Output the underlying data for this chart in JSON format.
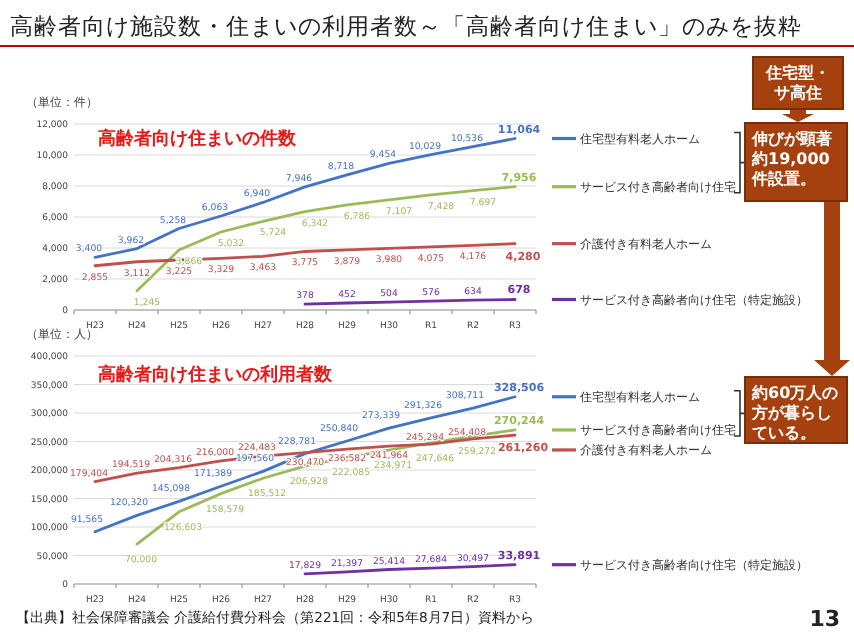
{
  "chart_data": [
    {
      "type": "line",
      "title": "高齢者向け施設数・住まいの利用者数～「高齢者向け住まい」のみを抜粋",
      "subtitle": "高齢者向け住まいの件数",
      "ylabel": "（単位：件）",
      "categories": [
        "H23",
        "H24",
        "H25",
        "H26",
        "H27",
        "H28",
        "H29",
        "H30",
        "R1",
        "R2",
        "R3"
      ],
      "series": [
        {
          "name": "住宅型有料老人ホーム",
          "color": "#4472c4",
          "values": [
            3400,
            3962,
            5258,
            6063,
            6940,
            7946,
            8718,
            9454,
            10029,
            10536,
            11064
          ],
          "value_labels": [
            "3,400",
            "3,962",
            "5,258",
            "6,063",
            "6,940",
            "7,946",
            "8,718",
            "9,454",
            "10,029",
            "10,536",
            "11,064"
          ]
        },
        {
          "name": "サービス付き高齢者向け住宅",
          "color": "#9bbb59",
          "values": [
            null,
            1245,
            3866,
            5032,
            5724,
            6342,
            6786,
            7107,
            7428,
            7697,
            7956
          ],
          "value_labels": [
            null,
            "1,245",
            "3,866",
            "5,032",
            "5,724",
            "6,342",
            "6,786",
            "7,107",
            "7,428",
            "7,697",
            "7,956"
          ]
        },
        {
          "name": "介護付き有料老人ホーム",
          "color": "#c0504d",
          "values": [
            2855,
            3112,
            3225,
            3329,
            3463,
            3775,
            3879,
            3980,
            4075,
            4176,
            4280
          ],
          "value_labels": [
            "2,855",
            "3,112",
            "3,225",
            "3,329",
            "3,463",
            "3,775",
            "3,879",
            "3,980",
            "4,075",
            "4,176",
            "4,280"
          ]
        },
        {
          "name": "サービス付き高齢者向け住宅（特定施設）",
          "color": "#7030a0",
          "values": [
            null,
            null,
            null,
            null,
            null,
            378,
            452,
            504,
            576,
            634,
            678
          ],
          "value_labels": [
            null,
            null,
            null,
            null,
            null,
            "378",
            "452",
            "504",
            "576",
            "634",
            "678"
          ]
        }
      ],
      "ylim": [
        0,
        12000
      ],
      "yticks": [
        {
          "value": 0,
          "label": "0"
        },
        {
          "value": 2000,
          "label": "2,000"
        },
        {
          "value": 4000,
          "label": "4,000"
        },
        {
          "value": 6000,
          "label": "6,000"
        },
        {
          "value": 8000,
          "label": "8,000"
        },
        {
          "value": 10000,
          "label": "10,000"
        },
        {
          "value": 12000,
          "label": "12,000"
        }
      ],
      "grid": "y",
      "legend": "right",
      "annotations": [
        "住宅型・サ高住",
        "伸びが顕著約19,000件設置。"
      ]
    },
    {
      "type": "line",
      "title": "高齢者向け住まいの利用者数",
      "ylabel": "（単位：人）",
      "categories": [
        "H23",
        "H24",
        "H25",
        "H26",
        "H27",
        "H28",
        "H29",
        "H30",
        "R1",
        "R2",
        "R3"
      ],
      "series": [
        {
          "name": "住宅型有料老人ホーム",
          "color": "#4472c4",
          "values": [
            91565,
            120320,
            145098,
            171389,
            197560,
            228781,
            250840,
            273339,
            291326,
            308711,
            328506
          ],
          "value_labels": [
            "91,565",
            "120,320",
            "145,098",
            "171,389",
            "197,560",
            "228,781",
            "250,840",
            "273,339",
            "291,326",
            "308,711",
            "328,506"
          ]
        },
        {
          "name": "サービス付き高齢者向け住宅",
          "color": "#9bbb59",
          "values": [
            null,
            70000,
            126603,
            158579,
            185512,
            206928,
            222085,
            234971,
            247646,
            259272,
            270244
          ],
          "value_labels": [
            null,
            "70,000",
            "126,603",
            "158,579",
            "185,512",
            "206,928",
            "222,085",
            "234,971",
            "247,646",
            "259,272",
            "270,244"
          ]
        },
        {
          "name": "介護付き有料老人ホーム",
          "color": "#c0504d",
          "values": [
            179404,
            194519,
            204316,
            216000,
            224483,
            230470,
            236582,
            241964,
            245294,
            254408,
            261260
          ],
          "value_labels": [
            "179,404",
            "194,519",
            "204,316",
            "216,000",
            "224,483",
            "230,470",
            "236,582",
            "241,964",
            "245,294",
            "254,408",
            "261,260"
          ]
        },
        {
          "name": "サービス付き高齢者向け住宅（特定施設）",
          "color": "#7030a0",
          "values": [
            null,
            null,
            null,
            null,
            null,
            17829,
            21397,
            25414,
            27684,
            30497,
            33891
          ],
          "value_labels": [
            null,
            null,
            null,
            null,
            null,
            "17,829",
            "21,397",
            "25,414",
            "27,684",
            "30,497",
            "33,891"
          ]
        }
      ],
      "ylim": [
        0,
        400000
      ],
      "yticks": [
        {
          "value": 0,
          "label": "0"
        },
        {
          "value": 50000,
          "label": "50,000"
        },
        {
          "value": 100000,
          "label": "100,000"
        },
        {
          "value": 150000,
          "label": "150,000"
        },
        {
          "value": 200000,
          "label": "200,000"
        },
        {
          "value": 250000,
          "label": "250,000"
        },
        {
          "value": 300000,
          "label": "300,000"
        },
        {
          "value": 350000,
          "label": "350,000"
        },
        {
          "value": 400000,
          "label": "400,000"
        }
      ],
      "grid": "y",
      "legend": "right",
      "annotations": [
        "約60万人の方が暮らしている。",
        "【出典】社会保障審議会 介護給付費分科会（第221回：令和5年8月7日）資料から",
        "13"
      ]
    }
  ]
}
